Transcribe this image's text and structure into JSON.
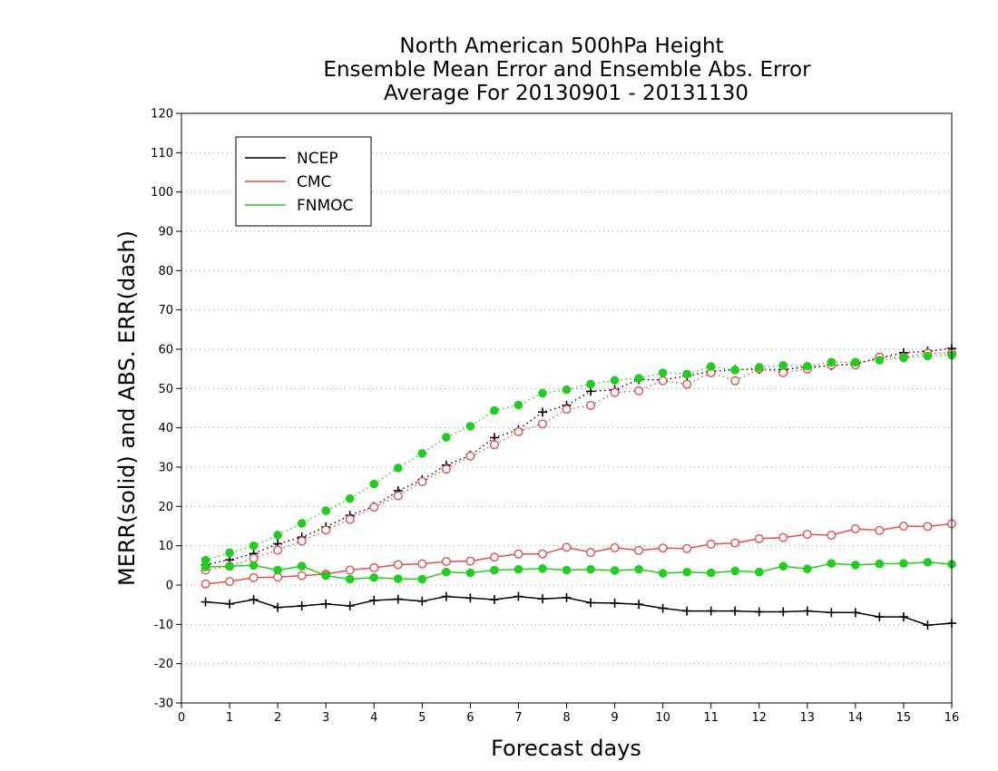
{
  "chart_data": {
    "type": "line",
    "title": [
      "North American 500hPa Height",
      "Ensemble Mean Error and Ensemble Abs. Error",
      "Average For 20130901 - 20131130"
    ],
    "xlabel": "Forecast days",
    "ylabel": "MERR(solid) and ABS. ERR(dash)",
    "xlim": [
      0,
      16
    ],
    "ylim": [
      -30,
      120
    ],
    "xticks": [
      0,
      1,
      2,
      3,
      4,
      5,
      6,
      7,
      8,
      9,
      10,
      11,
      12,
      13,
      14,
      15,
      16
    ],
    "yticks": [
      -30,
      -20,
      -10,
      0,
      10,
      20,
      30,
      40,
      50,
      60,
      70,
      80,
      90,
      100,
      110,
      120
    ],
    "grid": "horizontal dotted",
    "legend_position": "top-left",
    "x": [
      0.5,
      1,
      1.5,
      2,
      2.5,
      3,
      3.5,
      4,
      4.5,
      5,
      5.5,
      6,
      6.5,
      7,
      7.5,
      8,
      8.5,
      9,
      9.5,
      10,
      10.5,
      11,
      11.5,
      12,
      12.5,
      13,
      13.5,
      14,
      14.5,
      15,
      15.5,
      16
    ],
    "series": [
      {
        "name": "NCEP",
        "color": "#000000",
        "marker": "plus",
        "merr": [
          -4.3,
          -4.8,
          -3.7,
          -5.7,
          -5.3,
          -4.8,
          -5.3,
          -3.9,
          -3.6,
          -4.1,
          -2.9,
          -3.3,
          -3.7,
          -2.9,
          -3.5,
          -3.2,
          -4.5,
          -4.6,
          -4.9,
          -5.9,
          -6.6,
          -6.6,
          -6.6,
          -6.8,
          -6.8,
          -6.6,
          -7.0,
          -7.0,
          -8.1,
          -8.1,
          -10.2,
          -9.7
        ],
        "abserr": [
          5.2,
          6.4,
          8.0,
          10.5,
          12.2,
          14.8,
          17.7,
          20.0,
          24.0,
          26.8,
          30.5,
          33.0,
          37.5,
          39.5,
          44.0,
          45.7,
          49.3,
          49.7,
          52.3,
          52.2,
          53.2,
          54.4,
          54.8,
          54.9,
          54.8,
          55.5,
          55.8,
          56.3,
          57.8,
          59.1,
          59.5,
          60.2
        ]
      },
      {
        "name": "CMC",
        "color": "#e05050",
        "marker": "open-circle",
        "merr": [
          0.3,
          0.9,
          1.9,
          2.0,
          2.4,
          2.8,
          3.8,
          4.4,
          5.2,
          5.4,
          6.0,
          6.1,
          7.1,
          7.9,
          7.9,
          9.6,
          8.3,
          9.5,
          8.8,
          9.4,
          9.3,
          10.4,
          10.7,
          11.8,
          12.1,
          12.9,
          12.7,
          14.3,
          13.9,
          15.0,
          14.9,
          15.6
        ],
        "abserr": [
          3.8,
          4.8,
          6.8,
          8.9,
          11.2,
          14.0,
          16.7,
          19.8,
          22.7,
          26.3,
          29.5,
          32.8,
          35.7,
          39.0,
          41.0,
          44.7,
          45.7,
          49.0,
          49.4,
          52.0,
          51.1,
          54.0,
          52.0,
          55.0,
          54.0,
          55.0,
          56.0,
          56.0,
          58.0,
          58.0,
          59.0,
          59.0
        ]
      },
      {
        "name": "FNMOC",
        "color": "#22cc22",
        "marker": "filled-circle",
        "merr": [
          4.6,
          4.8,
          5.0,
          3.8,
          4.8,
          2.4,
          1.5,
          1.9,
          1.6,
          1.5,
          3.3,
          3.1,
          3.8,
          4.0,
          4.2,
          3.8,
          4.0,
          3.7,
          4.0,
          3.0,
          3.3,
          3.1,
          3.6,
          3.3,
          4.8,
          4.1,
          5.5,
          5.1,
          5.4,
          5.5,
          5.8,
          5.3
        ],
        "abserr": [
          6.3,
          8.2,
          10.0,
          12.7,
          15.7,
          18.9,
          22.0,
          25.7,
          29.8,
          33.5,
          37.6,
          40.4,
          44.4,
          45.8,
          48.8,
          49.7,
          51.1,
          52.1,
          52.6,
          54.0,
          53.7,
          55.6,
          54.7,
          55.4,
          55.9,
          55.7,
          56.7,
          56.7,
          57.2,
          57.8,
          58.3,
          58.5
        ]
      }
    ]
  }
}
